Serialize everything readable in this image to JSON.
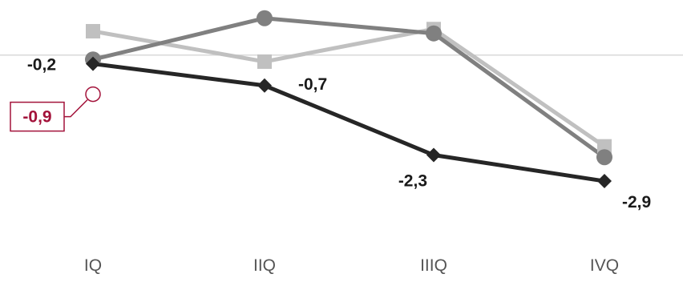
{
  "chart_data": {
    "type": "line",
    "title": "",
    "xlabel": "",
    "ylabel": "",
    "categories": [
      "IQ",
      "IIQ",
      "IIIQ",
      "IVQ"
    ],
    "ylim": [
      -3.6,
      0.9
    ],
    "grid": false,
    "legend": "none",
    "series": [
      {
        "values": [
          0.55,
          -0.15,
          0.6,
          -2.1
        ],
        "color": "#c0c0c0",
        "marker": "square"
      },
      {
        "values": [
          -0.1,
          0.85,
          0.5,
          -2.35
        ],
        "color": "#808080",
        "marker": "circle"
      },
      {
        "values": [
          -0.2,
          -0.7,
          -2.3,
          -2.9
        ],
        "color": "#262626",
        "marker": "diamond",
        "data_labels": [
          "-0,2",
          "-0,7",
          "-2,3",
          "-2,9"
        ]
      }
    ],
    "reference_line": {
      "value": 0,
      "color": "#d9d9d9"
    },
    "annotation": {
      "text": "-0,9",
      "category": "IQ",
      "value": -0.9,
      "color": "#a3123a"
    }
  }
}
